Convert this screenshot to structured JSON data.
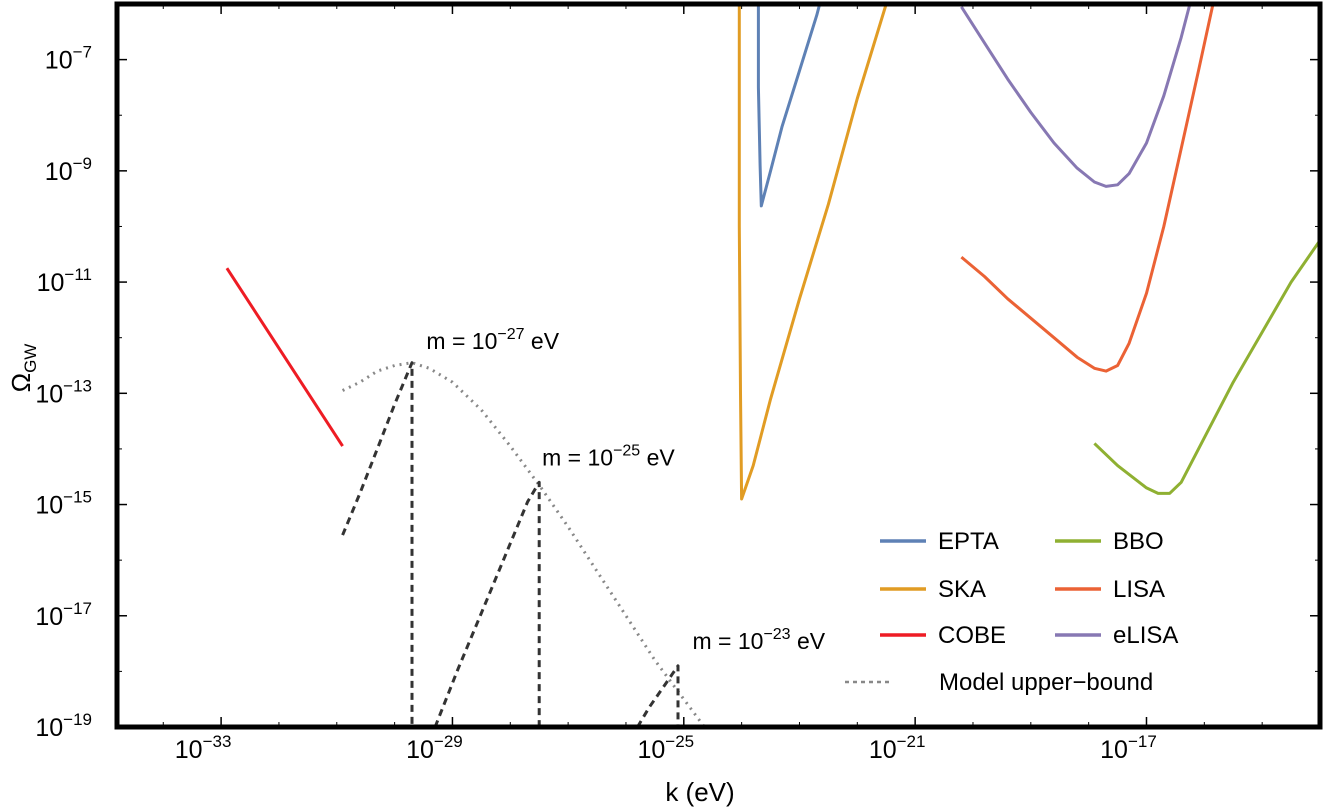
{
  "chart_data": {
    "type": "line",
    "title": "",
    "xlabel": "k (eV)",
    "ylabel": "Ω",
    "ylabel_subscript": "GW",
    "x_scale": "log",
    "y_scale": "log",
    "xlim_log10": [
      -34.8,
      -14.0
    ],
    "ylim_log10": [
      -19.0,
      -6.0
    ],
    "x_ticks": [
      {
        "base": "10",
        "exp": "−33",
        "log10": -33
      },
      {
        "base": "10",
        "exp": "−29",
        "log10": -29
      },
      {
        "base": "10",
        "exp": "−25",
        "log10": -25
      },
      {
        "base": "10",
        "exp": "−21",
        "log10": -21
      },
      {
        "base": "10",
        "exp": "−17",
        "log10": -17
      }
    ],
    "y_ticks": [
      {
        "base": "10",
        "exp": "−7",
        "log10": -7
      },
      {
        "base": "10",
        "exp": "−9",
        "log10": -9
      },
      {
        "base": "10",
        "exp": "−11",
        "log10": -11
      },
      {
        "base": "10",
        "exp": "−13",
        "log10": -13
      },
      {
        "base": "10",
        "exp": "−15",
        "log10": -15
      },
      {
        "base": "10",
        "exp": "−17",
        "log10": -17
      },
      {
        "base": "10",
        "exp": "−19",
        "log10": -19
      }
    ],
    "legend": {
      "placement": "bottom-right",
      "entries": [
        {
          "name": "EPTA",
          "series": "EPTA"
        },
        {
          "name": "BBO",
          "series": "BBO"
        },
        {
          "name": "SKA",
          "series": "SKA"
        },
        {
          "name": "LISA",
          "series": "LISA"
        },
        {
          "name": "COBE",
          "series": "COBE"
        },
        {
          "name": "eLISA",
          "series": "eLISA"
        },
        {
          "name": "Model upper−bound",
          "series": "Model upper-bound"
        }
      ]
    },
    "series": [
      {
        "name": "EPTA",
        "color": "#5e81b5",
        "style": "solid",
        "points_log10": [
          [
            -23.71,
            -6.0
          ],
          [
            -23.71,
            -7.5
          ],
          [
            -23.68,
            -8.9
          ],
          [
            -23.66,
            -9.63
          ],
          [
            -23.5,
            -9.0
          ],
          [
            -23.3,
            -8.2
          ],
          [
            -23.0,
            -7.2
          ],
          [
            -22.7,
            -6.2
          ],
          [
            -22.65,
            -6.0
          ]
        ]
      },
      {
        "name": "SKA",
        "color": "#e19c24",
        "style": "solid",
        "points_log10": [
          [
            -24.04,
            -6.0
          ],
          [
            -24.04,
            -10.0
          ],
          [
            -24.02,
            -13.0
          ],
          [
            -24.0,
            -14.9
          ],
          [
            -23.8,
            -14.3
          ],
          [
            -23.5,
            -13.1
          ],
          [
            -23.0,
            -11.3
          ],
          [
            -22.5,
            -9.6
          ],
          [
            -22.0,
            -7.7
          ],
          [
            -21.5,
            -6.0
          ]
        ]
      },
      {
        "name": "COBE",
        "color": "#ee1c24",
        "style": "solid",
        "points_log10": [
          [
            -32.9,
            -10.75
          ],
          [
            -30.9,
            -13.95
          ]
        ]
      },
      {
        "name": "BBO",
        "color": "#8fb032",
        "style": "solid",
        "points_log10": [
          [
            -17.9,
            -13.9
          ],
          [
            -17.5,
            -14.3
          ],
          [
            -17.0,
            -14.7
          ],
          [
            -16.8,
            -14.8
          ],
          [
            -16.6,
            -14.8
          ],
          [
            -16.4,
            -14.6
          ],
          [
            -16.0,
            -13.8
          ],
          [
            -15.5,
            -12.8
          ],
          [
            -15.0,
            -11.9
          ],
          [
            -14.5,
            -11.0
          ],
          [
            -14.0,
            -10.25
          ]
        ]
      },
      {
        "name": "LISA",
        "color": "#eb6235",
        "style": "solid",
        "points_log10": [
          [
            -20.2,
            -10.55
          ],
          [
            -19.8,
            -10.9
          ],
          [
            -19.4,
            -11.3
          ],
          [
            -19.0,
            -11.65
          ],
          [
            -18.6,
            -12.0
          ],
          [
            -18.2,
            -12.35
          ],
          [
            -17.9,
            -12.55
          ],
          [
            -17.7,
            -12.6
          ],
          [
            -17.5,
            -12.5
          ],
          [
            -17.3,
            -12.1
          ],
          [
            -17.0,
            -11.2
          ],
          [
            -16.7,
            -10.0
          ],
          [
            -16.4,
            -8.6
          ],
          [
            -16.1,
            -7.2
          ],
          [
            -15.85,
            -6.0
          ]
        ]
      },
      {
        "name": "eLISA",
        "color": "#8778b3",
        "style": "solid",
        "points_log10": [
          [
            -20.2,
            -6.05
          ],
          [
            -19.8,
            -6.7
          ],
          [
            -19.4,
            -7.35
          ],
          [
            -19.0,
            -7.95
          ],
          [
            -18.6,
            -8.5
          ],
          [
            -18.2,
            -8.95
          ],
          [
            -17.9,
            -9.2
          ],
          [
            -17.7,
            -9.28
          ],
          [
            -17.5,
            -9.25
          ],
          [
            -17.3,
            -9.05
          ],
          [
            -17.0,
            -8.5
          ],
          [
            -16.7,
            -7.65
          ],
          [
            -16.4,
            -6.6
          ],
          [
            -16.25,
            -6.0
          ]
        ]
      },
      {
        "name": "Model upper-bound",
        "color": "#888888",
        "style": "dotted",
        "points_log10": [
          [
            -30.9,
            -12.95
          ],
          [
            -30.6,
            -12.8
          ],
          [
            -30.3,
            -12.6
          ],
          [
            -30.0,
            -12.5
          ],
          [
            -29.7,
            -12.45
          ],
          [
            -29.4,
            -12.55
          ],
          [
            -29.0,
            -12.8
          ],
          [
            -28.5,
            -13.3
          ],
          [
            -28.0,
            -13.95
          ],
          [
            -27.5,
            -14.65
          ],
          [
            -27.0,
            -15.4
          ],
          [
            -26.5,
            -16.2
          ],
          [
            -26.0,
            -17.0
          ],
          [
            -25.5,
            -17.8
          ],
          [
            -25.0,
            -18.5
          ],
          [
            -24.5,
            -19.2
          ],
          [
            -24.3,
            -19.5
          ]
        ]
      },
      {
        "name": "m = 1e-27 eV",
        "color": "#333333",
        "style": "dashed",
        "points_log10": [
          [
            -30.9,
            -15.55
          ],
          [
            -30.6,
            -14.8
          ],
          [
            -30.3,
            -14.0
          ],
          [
            -30.0,
            -13.2
          ],
          [
            -29.8,
            -12.7
          ],
          [
            -29.7,
            -12.45
          ],
          [
            -29.7,
            -19.0
          ]
        ]
      },
      {
        "name": "m = 1e-25 eV",
        "color": "#333333",
        "style": "dashed",
        "points_log10": [
          [
            -29.3,
            -19.0
          ],
          [
            -28.9,
            -17.95
          ],
          [
            -28.5,
            -16.95
          ],
          [
            -28.1,
            -15.95
          ],
          [
            -27.7,
            -14.95
          ],
          [
            -27.5,
            -14.6
          ],
          [
            -27.5,
            -19.0
          ]
        ]
      },
      {
        "name": "m = 1e-23 eV",
        "color": "#333333",
        "style": "dashed",
        "points_log10": [
          [
            -25.8,
            -19.0
          ],
          [
            -25.6,
            -18.65
          ],
          [
            -25.4,
            -18.35
          ],
          [
            -25.2,
            -18.05
          ],
          [
            -25.1,
            -17.9
          ],
          [
            -25.1,
            -19.0
          ]
        ]
      }
    ],
    "annotations": [
      {
        "name": "m-1e-27",
        "text_pre": "m = 10",
        "exp": "−27",
        "text_post": " eV",
        "anchor_log10": [
          -29.45,
          -12.2
        ]
      },
      {
        "name": "m-1e-25",
        "text_pre": "m = 10",
        "exp": "−25",
        "text_post": " eV",
        "anchor_log10": [
          -27.45,
          -14.3
        ]
      },
      {
        "name": "m-1e-23",
        "text_pre": "m = 10",
        "exp": "−23",
        "text_post": " eV",
        "anchor_log10": [
          -24.85,
          -17.6
        ]
      }
    ]
  }
}
